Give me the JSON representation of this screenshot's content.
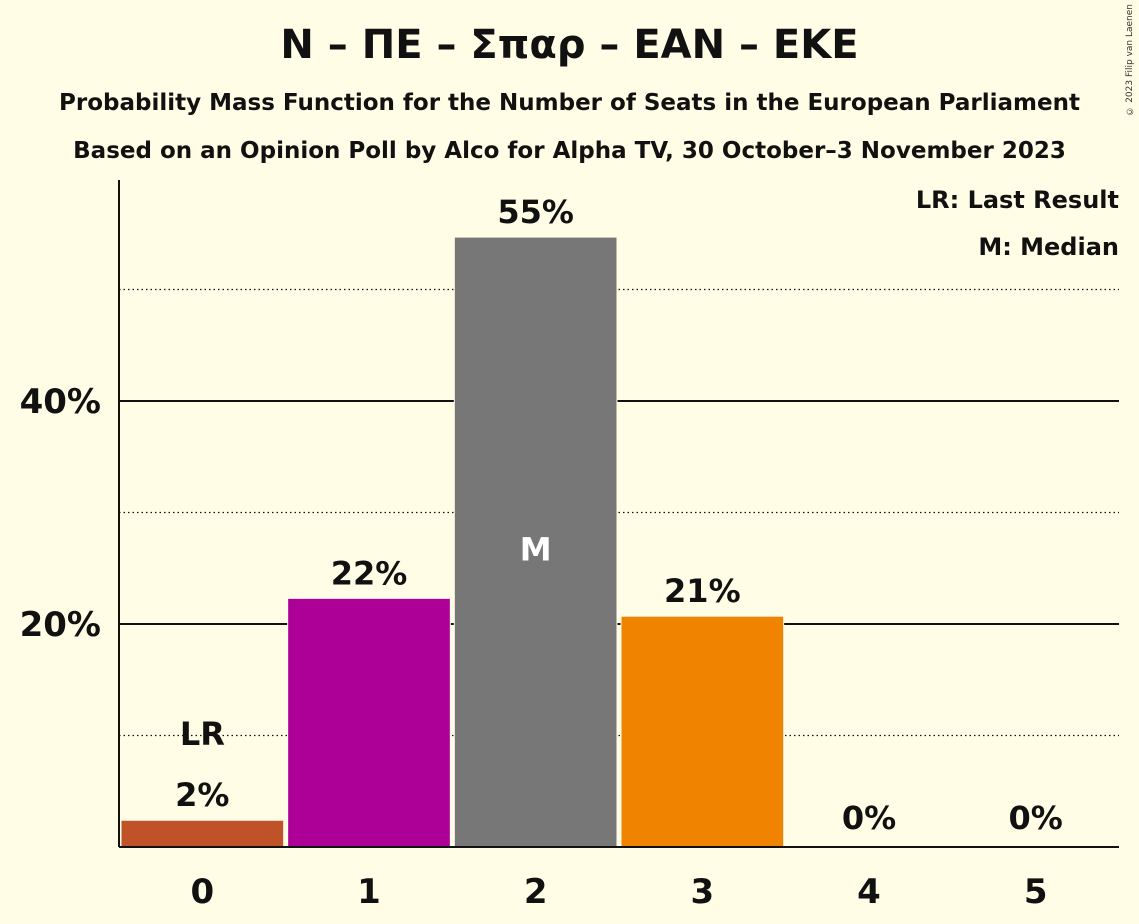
{
  "header": {
    "title": "N – ΠΕ – Σπαρ – ΕΑΝ – ΕΚΕ",
    "subtitle1": "Probability Mass Function for the Number of Seats in the European Parliament",
    "subtitle2": "Based on an Opinion Poll by Alco for Alpha TV, 30 October–3 November 2023",
    "copyright": "© 2023 Filip van Laenen"
  },
  "legend": {
    "last_result": "LR: Last Result",
    "median": "M: Median"
  },
  "chart_data": {
    "type": "bar",
    "categories": [
      "0",
      "1",
      "2",
      "3",
      "4",
      "5"
    ],
    "values": [
      2.4,
      22.3,
      54.7,
      20.7,
      0,
      0
    ],
    "value_labels": [
      "2%",
      "22%",
      "55%",
      "21%",
      "0%",
      "0%"
    ],
    "bar_colors": [
      "#c0522a",
      "#ad0096",
      "#777777",
      "#f08300",
      "#777777",
      "#777777"
    ],
    "ylim": [
      0,
      60
    ],
    "yticks": [
      20,
      40
    ],
    "ytick_labels": [
      "20%",
      "40%"
    ],
    "dotted_gridlines": [
      10,
      30,
      50
    ],
    "last_result_category": "0",
    "last_result_label": "LR",
    "median_category": "2",
    "median_label": "M",
    "xlabel": "",
    "ylabel": ""
  }
}
